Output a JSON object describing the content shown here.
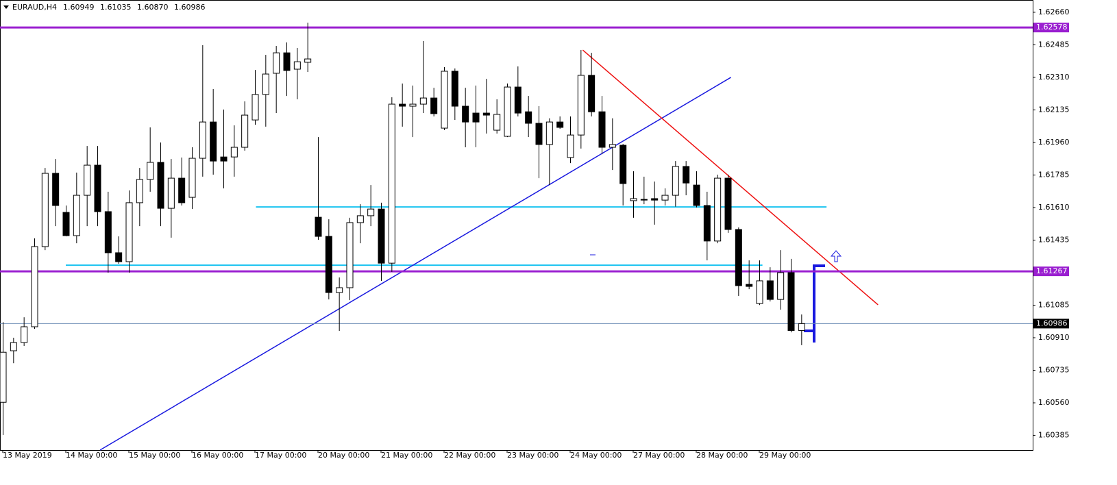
{
  "chart_data": {
    "type": "candlestick",
    "title": "EURAUD,H4",
    "header_values": [
      {
        "value": 1.60949,
        "label": "1.60949"
      },
      {
        "value": 1.61035,
        "label": "1.61035"
      },
      {
        "value": 1.6087,
        "label": "1.60870"
      },
      {
        "value": 1.60986,
        "label": "1.60986"
      }
    ],
    "categories": [
      "13 May 2019",
      null,
      null,
      null,
      null,
      null,
      "14 May 00:00",
      null,
      null,
      null,
      null,
      null,
      "15 May 00:00",
      null,
      null,
      null,
      null,
      null,
      "16 May 00:00",
      null,
      null,
      null,
      null,
      null,
      "17 May 00:00",
      null,
      null,
      null,
      null,
      null,
      "20 May 00:00",
      null,
      null,
      null,
      null,
      null,
      "21 May 00:00",
      null,
      null,
      null,
      null,
      null,
      "22 May 00:00",
      null,
      null,
      null,
      null,
      null,
      "23 May 00:00",
      null,
      null,
      null,
      null,
      null,
      "24 May 00:00",
      null,
      null,
      null,
      null,
      null,
      "27 May 00:00",
      null,
      null,
      null,
      null,
      null,
      "28 May 00:00",
      null,
      null,
      null,
      null,
      null,
      "29 May 00:00",
      null,
      null,
      null,
      null
    ],
    "open": [
      1.60563,
      1.6084,
      1.60884,
      1.60969,
      1.614,
      1.61794,
      1.61584,
      1.61459,
      1.61676,
      1.61838,
      1.61588,
      1.61367,
      1.61319,
      1.61636,
      1.61761,
      1.61853,
      1.61606,
      1.61768,
      1.61665,
      1.61875,
      1.6207,
      1.61882,
      1.61882,
      1.61934,
      1.62081,
      1.62218,
      1.62332,
      1.62442,
      1.62354,
      1.62391,
      1.61558,
      1.61455,
      1.61153,
      1.61179,
      1.61529,
      1.61566,
      1.61602,
      1.61311,
      1.62166,
      1.62155,
      1.62166,
      1.62199,
      1.62037,
      1.62343,
      1.62155,
      1.62118,
      1.62118,
      1.62026,
      1.61993,
      1.62258,
      1.62125,
      1.62063,
      1.61949,
      1.6207,
      1.61879,
      1.62,
      1.62321,
      1.62125,
      1.61934,
      1.61945,
      1.61647,
      1.61654,
      1.61658,
      1.6165,
      1.61676,
      1.61831,
      1.61731,
      1.61621,
      1.6143,
      1.61768,
      1.61492,
      1.61197,
      1.61094,
      1.61216,
      1.61116,
      1.6126,
      1.60949
    ],
    "high": [
      1.60994,
      1.6091,
      1.6102,
      1.61444,
      1.61823,
      1.61871,
      1.61621,
      1.61798,
      1.61941,
      1.61941,
      1.61695,
      1.61455,
      1.61702,
      1.61823,
      1.62041,
      1.6196,
      1.61871,
      1.61879,
      1.61934,
      1.62483,
      1.62247,
      1.62137,
      1.62052,
      1.62181,
      1.6235,
      1.62431,
      1.62479,
      1.62498,
      1.62468,
      1.62604,
      1.61989,
      1.61547,
      1.61234,
      1.61555,
      1.61628,
      1.61731,
      1.61636,
      1.62203,
      1.62277,
      1.62266,
      1.62505,
      1.62254,
      1.62365,
      1.62358,
      1.62254,
      1.62266,
      1.62302,
      1.62192,
      1.62277,
      1.62369,
      1.6221,
      1.62155,
      1.6209,
      1.621,
      1.621,
      1.62457,
      1.62442,
      1.6221,
      1.6209,
      1.61952,
      1.61805,
      1.61776,
      1.6175,
      1.61713,
      1.6186,
      1.6186,
      1.61805,
      1.61695,
      1.61787,
      1.61787,
      1.61503,
      1.61326,
      1.61326,
      1.61289,
      1.61381,
      1.61334,
      1.61035
    ],
    "low": [
      1.60387,
      1.60773,
      1.60866,
      1.60958,
      1.61381,
      1.6151,
      1.61455,
      1.61418,
      1.6151,
      1.6151,
      1.6126,
      1.61308,
      1.6126,
      1.6151,
      1.61695,
      1.6151,
      1.61448,
      1.61621,
      1.61602,
      1.61776,
      1.61787,
      1.61713,
      1.61776,
      1.61916,
      1.62055,
      1.62045,
      1.62118,
      1.6221,
      1.62192,
      1.62339,
      1.61437,
      1.61116,
      1.60947,
      1.61112,
      1.61418,
      1.6151,
      1.61216,
      1.61264,
      1.62045,
      1.61989,
      1.62118,
      1.621,
      1.62026,
      1.62081,
      1.61934,
      1.61934,
      1.62008,
      1.62008,
      1.61989,
      1.621,
      1.61989,
      1.61768,
      1.61731,
      1.62033,
      1.61849,
      1.61927,
      1.621,
      1.61897,
      1.61812,
      1.61621,
      1.61555,
      1.61628,
      1.61518,
      1.61621,
      1.61615,
      1.61676,
      1.61611,
      1.61326,
      1.61418,
      1.61474,
      1.61135,
      1.61171,
      1.61086,
      1.61105,
      1.61061,
      1.60939,
      1.6087
    ],
    "close": [
      1.60832,
      1.60884,
      1.60969,
      1.614,
      1.61794,
      1.61621,
      1.61459,
      1.61676,
      1.61838,
      1.61588,
      1.61367,
      1.61319,
      1.61636,
      1.61761,
      1.61853,
      1.61606,
      1.61768,
      1.61636,
      1.61875,
      1.6207,
      1.6186,
      1.6186,
      1.61934,
      1.62107,
      1.62218,
      1.62328,
      1.62442,
      1.62347,
      1.62394,
      1.62409,
      1.61455,
      1.61153,
      1.61179,
      1.61529,
      1.61566,
      1.61602,
      1.61311,
      1.62166,
      1.62155,
      1.62166,
      1.62199,
      1.62115,
      1.62343,
      1.62155,
      1.6207,
      1.6207,
      1.62107,
      1.62111,
      1.62258,
      1.62118,
      1.62063,
      1.61949,
      1.6207,
      1.62041,
      1.62,
      1.62321,
      1.62125,
      1.61934,
      1.61949,
      1.61739,
      1.61658,
      1.6165,
      1.6165,
      1.61676,
      1.61831,
      1.61742,
      1.61621,
      1.6143,
      1.61768,
      1.61492,
      1.6119,
      1.61186,
      1.61216,
      1.61116,
      1.6126,
      1.60949,
      1.60986
    ],
    "ylim": [
      1.60306,
      1.62726
    ],
    "yticks": [
      {
        "value": 1.6266,
        "label": "1.62660"
      },
      {
        "value": 1.62485,
        "label": "1.62485"
      },
      {
        "value": 1.6231,
        "label": "1.62310"
      },
      {
        "value": 1.62135,
        "label": "1.62135"
      },
      {
        "value": 1.6196,
        "label": "1.61960"
      },
      {
        "value": 1.61785,
        "label": "1.61785"
      },
      {
        "value": 1.6161,
        "label": "1.61610"
      },
      {
        "value": 1.61435,
        "label": "1.61435"
      },
      {
        "value": 1.61085,
        "label": "1.61085"
      },
      {
        "value": 1.6091,
        "label": "1.60910"
      },
      {
        "value": 1.60735,
        "label": "1.60735"
      },
      {
        "value": 1.6056,
        "label": "1.60560"
      },
      {
        "value": 1.60385,
        "label": "1.60385"
      }
    ],
    "levels": [
      {
        "value": 1.62578,
        "label": "1.62578",
        "color": "#9a1fd0"
      },
      {
        "value": 1.61267,
        "label": "1.61267",
        "color": "#9a1fd0"
      },
      {
        "value": 1.60986,
        "label": "1.60986",
        "color": "#6b8db5"
      }
    ],
    "trendlines": [
      {
        "color": "#19c3f0",
        "x": [
          24.1,
          78.4
        ],
        "y": [
          1.61613,
          1.61613
        ]
      },
      {
        "color": "#19c3f0",
        "x": [
          6,
          72.3
        ],
        "y": [
          1.613,
          1.613
        ]
      },
      {
        "color": "#1a1adf",
        "x": [
          9.26,
          69.3
        ],
        "y": [
          1.60306,
          1.6231
        ]
      },
      {
        "color": "#ee1111",
        "x": [
          55.2,
          83.3
        ],
        "y": [
          1.62457,
          1.61087
        ]
      }
    ],
    "bull_color": "#ffffff",
    "bear_color": "#000000"
  }
}
